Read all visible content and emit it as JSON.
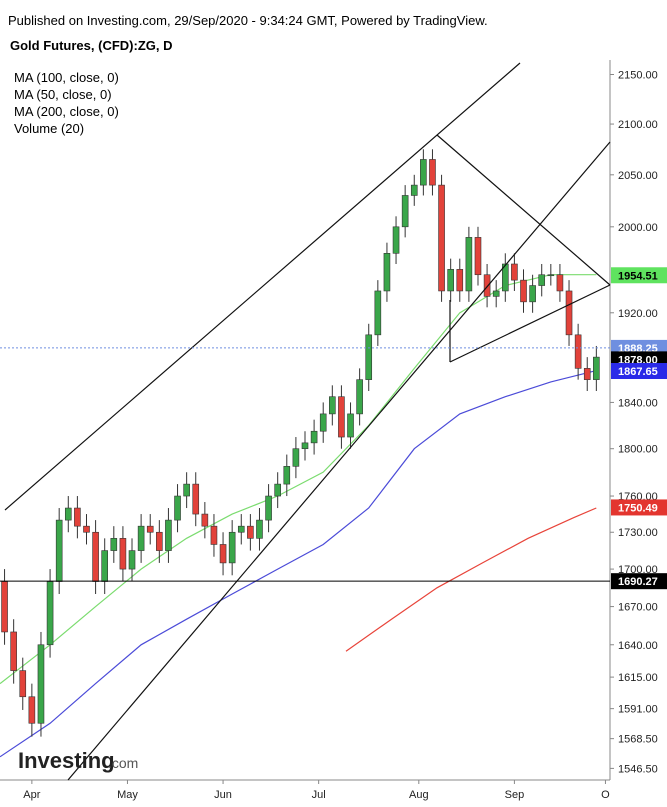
{
  "header": {
    "published": "Published on Investing.com, 29/Sep/2020 - 9:34:24 GMT, Powered by TradingView.",
    "instrument": "Gold Futures, (CFD):ZG, D"
  },
  "legend": [
    "MA (100, close, 0)",
    "MA (50, close, 0)",
    "MA (200, close, 0)",
    "Volume (20)"
  ],
  "logo": {
    "name": "Investing",
    "suffix": ".com"
  },
  "chart_data": {
    "type": "candlestick",
    "log_scale": true,
    "up_color": "#3aa64a",
    "down_color": "#e2423a",
    "xlim": [
      -1,
      133
    ],
    "ylim": [
      1538,
      2170
    ],
    "xticks": [
      {
        "value": 6,
        "label": "Apr"
      },
      {
        "value": 27,
        "label": "May"
      },
      {
        "value": 48,
        "label": "Jun"
      },
      {
        "value": 69,
        "label": "Jul"
      },
      {
        "value": 91,
        "label": "Aug"
      },
      {
        "value": 112,
        "label": "Sep"
      },
      {
        "value": 132,
        "label": "O"
      }
    ],
    "yticks": [
      {
        "value": 2150,
        "label": "2150.00"
      },
      {
        "value": 2100,
        "label": "2100.00"
      },
      {
        "value": 2050,
        "label": "2050.00"
      },
      {
        "value": 2000,
        "label": "2000.00"
      },
      {
        "value": 1920,
        "label": "1920.00"
      },
      {
        "value": 1840,
        "label": "1840.00"
      },
      {
        "value": 1800,
        "label": "1800.00"
      },
      {
        "value": 1760,
        "label": "1760.00"
      },
      {
        "value": 1730,
        "label": "1730.00"
      },
      {
        "value": 1700,
        "label": "1700.00"
      },
      {
        "value": 1670,
        "label": "1670.00"
      },
      {
        "value": 1640,
        "label": "1640.00"
      },
      {
        "value": 1615,
        "label": "1615.00"
      },
      {
        "value": 1591,
        "label": "1591.00"
      },
      {
        "value": 1568.5,
        "label": "1568.50"
      },
      {
        "value": 1546.5,
        "label": "1546.50"
      }
    ],
    "x": [
      0,
      2,
      4,
      6,
      8,
      10,
      12,
      14,
      16,
      18,
      20,
      22,
      24,
      26,
      28,
      30,
      32,
      34,
      36,
      38,
      40,
      42,
      44,
      46,
      48,
      50,
      52,
      54,
      56,
      58,
      60,
      62,
      64,
      66,
      68,
      70,
      72,
      74,
      76,
      78,
      80,
      82,
      84,
      86,
      88,
      90,
      92,
      94,
      96,
      98,
      100,
      102,
      104,
      106,
      108,
      110,
      112,
      114,
      116,
      118,
      120,
      122,
      124,
      126,
      128,
      130
    ],
    "open": [
      1690,
      1650,
      1620,
      1600,
      1580,
      1640,
      1690,
      1740,
      1750,
      1735,
      1730,
      1690,
      1715,
      1725,
      1700,
      1715,
      1735,
      1730,
      1715,
      1740,
      1760,
      1770,
      1745,
      1735,
      1720,
      1705,
      1730,
      1735,
      1725,
      1740,
      1760,
      1770,
      1785,
      1800,
      1805,
      1815,
      1830,
      1845,
      1810,
      1830,
      1860,
      1900,
      1940,
      1975,
      2000,
      2030,
      2040,
      2065,
      2040,
      1940,
      1960,
      1940,
      1990,
      1955,
      1935,
      1940,
      1965,
      1950,
      1930,
      1945,
      1955,
      1955,
      1940,
      1900,
      1870,
      1860
    ],
    "high": [
      1700,
      1660,
      1630,
      1610,
      1650,
      1700,
      1750,
      1760,
      1760,
      1745,
      1740,
      1725,
      1735,
      1735,
      1725,
      1745,
      1745,
      1740,
      1750,
      1770,
      1780,
      1780,
      1755,
      1745,
      1730,
      1740,
      1745,
      1745,
      1750,
      1770,
      1780,
      1795,
      1810,
      1815,
      1825,
      1840,
      1855,
      1855,
      1840,
      1870,
      1910,
      1950,
      1985,
      2010,
      2040,
      2050,
      2075,
      2075,
      2050,
      1970,
      1970,
      2000,
      2000,
      1965,
      1950,
      1975,
      1975,
      1960,
      1955,
      1965,
      1965,
      1965,
      1950,
      1910,
      1880,
      1890
    ],
    "low": [
      1640,
      1610,
      1590,
      1570,
      1570,
      1630,
      1680,
      1730,
      1725,
      1720,
      1680,
      1680,
      1705,
      1690,
      1690,
      1705,
      1720,
      1705,
      1705,
      1730,
      1750,
      1735,
      1725,
      1710,
      1695,
      1695,
      1720,
      1715,
      1715,
      1730,
      1750,
      1760,
      1775,
      1790,
      1795,
      1805,
      1820,
      1800,
      1800,
      1820,
      1850,
      1890,
      1930,
      1965,
      1990,
      2020,
      2030,
      2030,
      1930,
      1930,
      1930,
      1930,
      1945,
      1925,
      1925,
      1930,
      1940,
      1920,
      1920,
      1935,
      1945,
      1930,
      1890,
      1860,
      1850,
      1850
    ],
    "close": [
      1650,
      1620,
      1600,
      1580,
      1640,
      1690,
      1740,
      1750,
      1735,
      1730,
      1690,
      1715,
      1725,
      1700,
      1715,
      1735,
      1730,
      1715,
      1740,
      1760,
      1770,
      1745,
      1735,
      1720,
      1705,
      1730,
      1735,
      1725,
      1740,
      1760,
      1770,
      1785,
      1800,
      1805,
      1815,
      1830,
      1845,
      1810,
      1830,
      1860,
      1900,
      1940,
      1975,
      2000,
      2030,
      2040,
      2065,
      2040,
      1940,
      1960,
      1940,
      1990,
      1955,
      1935,
      1940,
      1965,
      1950,
      1930,
      1945,
      1955,
      1955,
      1940,
      1900,
      1870,
      1860,
      1880
    ],
    "moving_averages": [
      {
        "color": "#4b4bd8",
        "x": [
          -1,
          10,
          20,
          30,
          40,
          50,
          60,
          70,
          80,
          90,
          100,
          110,
          120,
          130
        ],
        "values": [
          1555,
          1580,
          1610,
          1640,
          1660,
          1680,
          1700,
          1720,
          1750,
          1800,
          1830,
          1845,
          1858,
          1868
        ]
      },
      {
        "color": "#7bdc6f",
        "x": [
          -1,
          10,
          20,
          30,
          40,
          50,
          60,
          70,
          80,
          90,
          100,
          110,
          120,
          130
        ],
        "values": [
          1610,
          1640,
          1670,
          1700,
          1725,
          1745,
          1760,
          1780,
          1820,
          1870,
          1920,
          1945,
          1955,
          1955
        ]
      },
      {
        "color": "#e8443a",
        "x": [
          75,
          85,
          95,
          105,
          115,
          125,
          130
        ],
        "values": [
          1635,
          1660,
          1685,
          1705,
          1725,
          1742,
          1750
        ]
      }
    ],
    "price_labels": [
      {
        "value": 1954.51,
        "color": "#5fe35f",
        "text_color": "#000000"
      },
      {
        "value": 1888.25,
        "color": "#6f8fe0",
        "text_color": "#ffffff",
        "line": "dotted"
      },
      {
        "value": 1878,
        "label": "1878.00",
        "color": "#000000",
        "text_color": "#ffffff"
      },
      {
        "value": 1867.65,
        "color": "#2a2ae8",
        "text_color": "#ffffff"
      },
      {
        "value": 1750.49,
        "color": "#e3352f",
        "text_color": "#ffffff"
      },
      {
        "value": 1690.27,
        "color": "#000000",
        "text_color": "#ffffff",
        "line": "solid"
      }
    ]
  }
}
